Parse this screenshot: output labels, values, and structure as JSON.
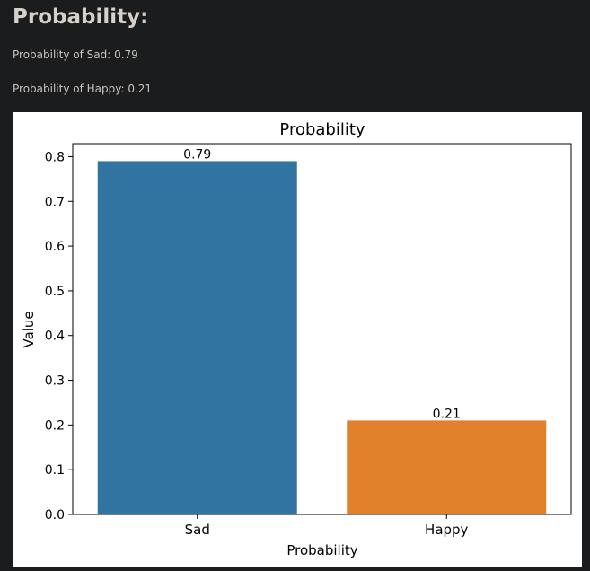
{
  "page": {
    "heading": "Probability:",
    "lines": [
      {
        "label": "Probability of Sad: 0.79"
      },
      {
        "label": "Probability of Happy: 0.21"
      }
    ]
  },
  "chart_data": {
    "type": "bar",
    "title": "Probability",
    "xlabel": "Probability",
    "ylabel": "Value",
    "categories": [
      "Sad",
      "Happy"
    ],
    "values": [
      0.79,
      0.21
    ],
    "data_labels": [
      "0.79",
      "0.21"
    ],
    "colors": [
      "#3274a1",
      "#e1812c"
    ],
    "ylim": [
      0,
      0.829
    ],
    "yticks": [
      0.0,
      0.1,
      0.2,
      0.3,
      0.4,
      0.5,
      0.6,
      0.7,
      0.8
    ],
    "ytick_labels": [
      "0.0",
      "0.1",
      "0.2",
      "0.3",
      "0.4",
      "0.5",
      "0.6",
      "0.7",
      "0.8"
    ],
    "grid": false,
    "legend": "none"
  }
}
